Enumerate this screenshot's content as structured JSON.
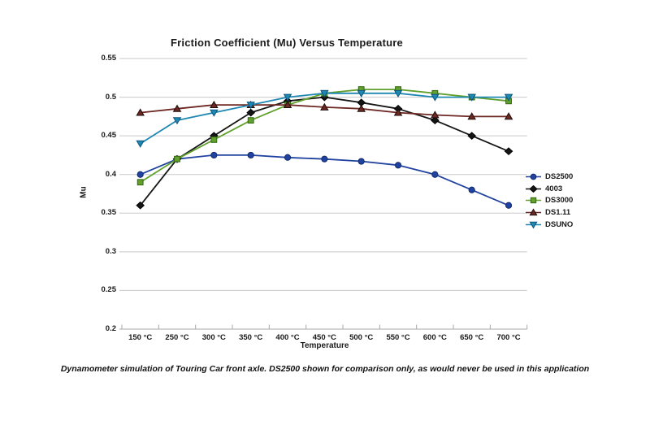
{
  "figure": {
    "caption": "Dynamometer simulation of Touring Car front axle. DS2500 shown for comparison only, as would never be used in this application"
  },
  "chart_data": {
    "type": "line",
    "title": "Friction Coefficient (Mu) Versus Temperature",
    "xlabel": "Temperature",
    "ylabel": "Mu",
    "ylim": [
      0.2,
      0.55
    ],
    "ytick_step": 0.05,
    "ytick_labels": [
      "0.55",
      "0.5",
      "0.45",
      "0.4",
      "0.35",
      "0.3",
      "0.25",
      "0.2"
    ],
    "grid": true,
    "legend_position": "right",
    "categories": [
      "150 °C",
      "250 °C",
      "300 °C",
      "350 °C",
      "400 °C",
      "450 °C",
      "500 °C",
      "550 °C",
      "600 °C",
      "650 °C",
      "700 °C"
    ],
    "series": [
      {
        "name": "DS2500",
        "marker": "circle",
        "color": "#2143a0",
        "marker_stroke": "#122a6e",
        "values": [
          0.4,
          0.42,
          0.425,
          0.425,
          0.422,
          0.42,
          0.417,
          0.412,
          0.4,
          0.38,
          0.36
        ]
      },
      {
        "name": "4003",
        "marker": "diamond",
        "color": "#151515",
        "marker_stroke": "#000000",
        "values": [
          0.36,
          0.42,
          0.45,
          0.48,
          0.495,
          0.5,
          0.493,
          0.485,
          0.47,
          0.45,
          0.43
        ]
      },
      {
        "name": "DS3000",
        "marker": "square",
        "color": "#61a02c",
        "marker_stroke": "#336612",
        "values": [
          0.39,
          0.42,
          0.445,
          0.47,
          0.49,
          0.505,
          0.51,
          0.51,
          0.505,
          0.5,
          0.495
        ]
      },
      {
        "name": "DS1.11",
        "marker": "triangle-up",
        "color": "#6d2823",
        "marker_stroke": "#1c0d0a",
        "values": [
          0.48,
          0.485,
          0.49,
          0.49,
          0.49,
          0.487,
          0.485,
          0.48,
          0.477,
          0.475,
          0.475
        ]
      },
      {
        "name": "DSUNO",
        "marker": "triangle-down",
        "color": "#1e87b2",
        "marker_stroke": "#0e567c",
        "values": [
          0.44,
          0.47,
          0.48,
          0.49,
          0.5,
          0.505,
          0.505,
          0.505,
          0.5,
          0.5,
          0.5
        ]
      }
    ],
    "style": {
      "gridline_color": "#c9c9c9",
      "axis_color": "#a8a8a8",
      "background": "#ffffff"
    }
  }
}
